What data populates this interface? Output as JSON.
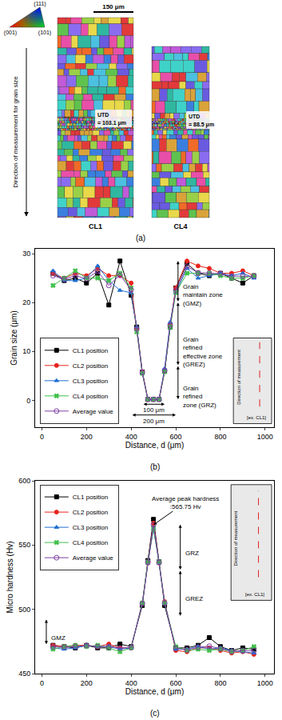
{
  "panel_a": {
    "panel_label": "(a)",
    "orientation_key": {
      "top": "(111)",
      "left": "(001)",
      "right": "(101)"
    },
    "scale_bar": "150 μm",
    "direction_label": "Direction of measurement for grain size",
    "maps": [
      {
        "name": "CL1",
        "utd": [
          "UTD",
          "= 103.1 μm"
        ]
      },
      {
        "name": "CL4",
        "utd": [
          "UTD",
          "= 88.5 μm"
        ]
      }
    ]
  },
  "chart_data": [
    {
      "type": "line",
      "panel_label": "(b)",
      "x_label": "Distance, d (μm)",
      "y_label": "Grain size (μm)",
      "x": [
        50,
        100,
        150,
        200,
        250,
        300,
        350,
        400,
        425,
        450,
        475,
        500,
        525,
        550,
        575,
        600,
        650,
        700,
        750,
        800,
        850,
        900,
        950
      ],
      "xlim": [
        -30,
        1040
      ],
      "xticks": [
        0,
        200,
        400,
        600,
        800,
        1000
      ],
      "ylim": [
        -5.5,
        31
      ],
      "yticks": [
        0,
        10,
        20,
        30
      ],
      "grid": false,
      "legend": "lower left",
      "series": [
        {
          "name": "CL1 position",
          "color": "#000000",
          "marker": "square",
          "values": [
            26,
            24.5,
            25,
            24,
            26,
            19.5,
            28.5,
            21.5,
            15,
            5.8,
            0.2,
            0.2,
            0.2,
            6,
            15,
            23,
            28,
            26,
            25.5,
            26,
            25,
            24,
            25.5
          ]
        },
        {
          "name": "CL2 position",
          "color": "#e8231c",
          "marker": "circle",
          "values": [
            26,
            25,
            26,
            25.5,
            27,
            25.5,
            25.5,
            24,
            14.5,
            5.8,
            0.2,
            0.2,
            0.2,
            6,
            15.5,
            23,
            28.5,
            27.5,
            27,
            26,
            26,
            26.5,
            25.5
          ]
        },
        {
          "name": "CL3 position",
          "color": "#1f6fd1",
          "marker": "triangle",
          "values": [
            26.5,
            24.5,
            24.5,
            25,
            27.5,
            24.5,
            22.5,
            22,
            15,
            5.5,
            0.2,
            0.2,
            0.2,
            6.5,
            16,
            22,
            27,
            25,
            25.5,
            26,
            25.5,
            26,
            25
          ]
        },
        {
          "name": "CL4 position",
          "color": "#3fbf4a",
          "marker": "x",
          "values": [
            23.5,
            25,
            26.5,
            25,
            25,
            24.5,
            26,
            23,
            14,
            5.5,
            0.2,
            0.2,
            0.2,
            5.8,
            15,
            22,
            26,
            26,
            26,
            25.5,
            25,
            25,
            25.5
          ]
        },
        {
          "name": "Average value",
          "color": "#7e3fa3",
          "marker": "open circle",
          "values": [
            25.5,
            24.8,
            25.5,
            24.9,
            26.4,
            23.5,
            25.6,
            22.6,
            14.6,
            5.7,
            0.2,
            0.2,
            0.2,
            6.1,
            15.4,
            22.5,
            27.4,
            26.1,
            26,
            25.9,
            25.4,
            25.4,
            25.4
          ]
        }
      ],
      "zones": [
        {
          "label": [
            "Grain",
            "maintain zone",
            "(GMZ)"
          ],
          "x": 610,
          "from": 20,
          "to": 28.5
        },
        {
          "label": [
            "Grain",
            "refined",
            "effective zone",
            "(GREZ)"
          ],
          "x": 610,
          "from": 7,
          "to": 20
        },
        {
          "label": [
            "Grain",
            "refined",
            "zone (GRZ)"
          ],
          "x": 610,
          "from": 0,
          "to": 7
        }
      ],
      "spans": [
        {
          "label": "100 μm",
          "from": 450,
          "to": 550,
          "y": -0.8
        },
        {
          "label": "200 μm",
          "from": 400,
          "to": 600,
          "y": -3.0
        }
      ],
      "inset": {
        "label": "[ex. CL1]",
        "direction_label": "Direction of measurement"
      }
    },
    {
      "type": "line",
      "panel_label": "(c)",
      "x_label": "Distance, d (μm)",
      "y_label": "Micro hardness (Hv)",
      "x": [
        50,
        100,
        150,
        200,
        250,
        300,
        350,
        400,
        450,
        475,
        500,
        525,
        550,
        600,
        650,
        700,
        750,
        800,
        850,
        900,
        950
      ],
      "xlim": [
        -30,
        1040
      ],
      "xticks": [
        0,
        200,
        400,
        600,
        800,
        1000
      ],
      "ylim": [
        450,
        600
      ],
      "yticks": [
        450,
        500,
        550,
        600
      ],
      "grid": false,
      "legend": "upper left",
      "series": [
        {
          "name": "CL1 position",
          "color": "#000000",
          "marker": "square",
          "values": [
            472,
            471,
            470,
            472,
            470,
            470,
            473,
            471,
            503,
            538,
            570,
            537,
            503,
            470,
            470,
            472,
            478,
            471,
            468,
            470,
            469
          ]
        },
        {
          "name": "CL2 position",
          "color": "#e8231c",
          "marker": "circle",
          "values": [
            472,
            471,
            472,
            472,
            471,
            473,
            470,
            470,
            505,
            536,
            567,
            536,
            506,
            468,
            467,
            470,
            470,
            468,
            466,
            467,
            465
          ]
        },
        {
          "name": "CL3 position",
          "color": "#1f6fd1",
          "marker": "triangle",
          "values": [
            470,
            469,
            470,
            472,
            471,
            471,
            469,
            470,
            505,
            536,
            563,
            536,
            505,
            469,
            469,
            471,
            469,
            470,
            468,
            467,
            466
          ]
        },
        {
          "name": "CL4 position",
          "color": "#3fbf4a",
          "marker": "x",
          "values": [
            469,
            471,
            472,
            471,
            472,
            470,
            467,
            470,
            505,
            537,
            563,
            537,
            505,
            471,
            468,
            469,
            468,
            469,
            467,
            468,
            471
          ]
        },
        {
          "name": "Average value",
          "color": "#7e3fa3",
          "marker": "open circle",
          "values": [
            470.8,
            470.5,
            471,
            471.8,
            471,
            471,
            469.8,
            470.3,
            504.5,
            536.8,
            565.75,
            536.5,
            504.8,
            469.5,
            468.5,
            470.5,
            471.3,
            469.5,
            467.3,
            468,
            467.8
          ]
        }
      ],
      "peak_note": {
        "label": [
          "Average peak hardness",
          ":565.75 Hv"
        ],
        "x": 500,
        "y": 565.75
      },
      "zones": [
        {
          "label": [
            "GRZ"
          ],
          "x": 620,
          "from": 530,
          "to": 566
        },
        {
          "label": [
            "GREZ"
          ],
          "x": 620,
          "from": 494,
          "to": 530
        },
        {
          "label": [
            "GMZ"
          ],
          "x": 20,
          "from": 472,
          "to": 492
        }
      ],
      "spans": [],
      "inset": {
        "label": "[ex. CL1]",
        "direction_label": "Direction of measurement"
      }
    }
  ]
}
